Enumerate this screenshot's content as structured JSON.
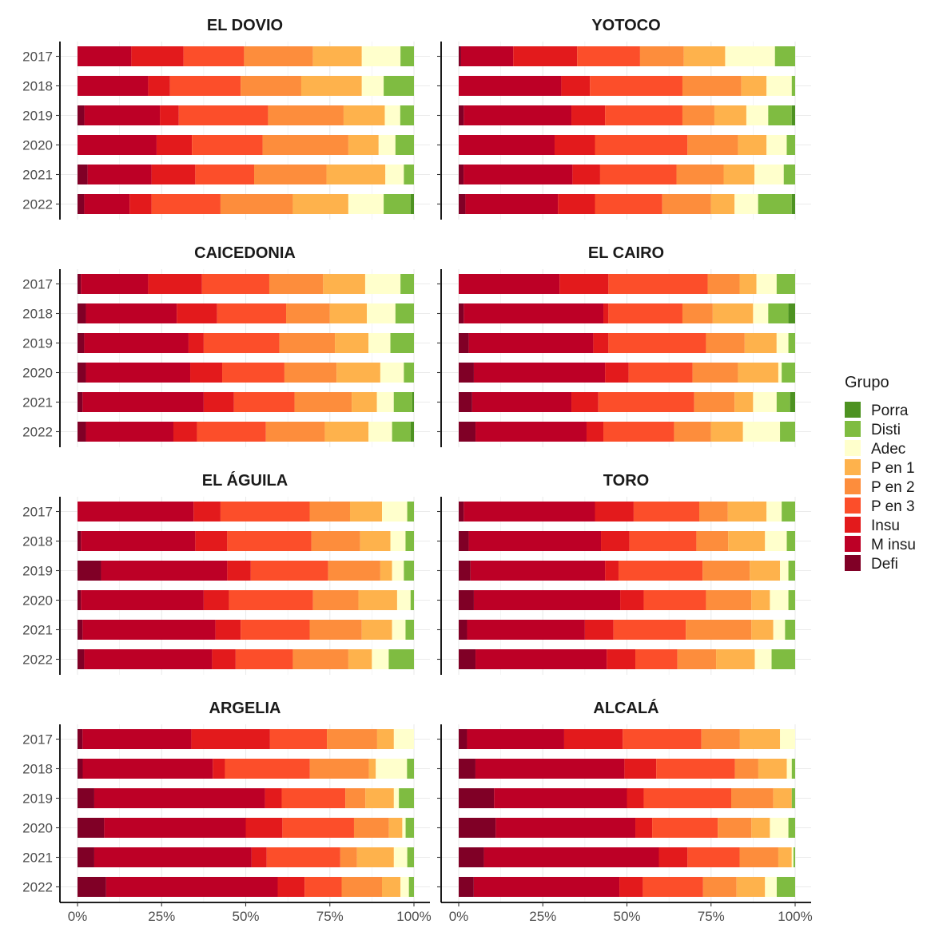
{
  "chart_data": {
    "type": "bar",
    "orientation": "horizontal",
    "stacked": "percent",
    "legend": {
      "title": "Grupo",
      "position": "right",
      "entries": [
        "Porra",
        "Disti",
        "Adec",
        "P en 1",
        "P en 2",
        "P en 3",
        "Insu",
        "M insu",
        "Defi"
      ]
    },
    "colors": {
      "Defi": "#800026",
      "M insu": "#BD0026",
      "Insu": "#E31A1C",
      "P en 3": "#FC4E2A",
      "P en 2": "#FD8D3C",
      "P en 1": "#FEB24C",
      "Adec": "#FFFFCC",
      "Disti": "#7FBC41",
      "Porra": "#4D9221"
    },
    "stack_order": [
      "Defi",
      "M insu",
      "Insu",
      "P en 3",
      "P en 2",
      "P en 1",
      "Adec",
      "Disti",
      "Porra"
    ],
    "years": [
      "2017",
      "2018",
      "2019",
      "2020",
      "2021",
      "2022"
    ],
    "x_ticks": [
      "0%",
      "25%",
      "50%",
      "75%",
      "100%"
    ],
    "grid": true,
    "panels": [
      {
        "title": "EL DOVIO",
        "rows": [
          [
            0,
            16,
            15.5,
            18,
            20.5,
            14.5,
            11.5,
            4,
            0
          ],
          [
            0,
            21,
            6.5,
            21,
            18,
            18,
            6.5,
            9,
            0
          ],
          [
            2,
            22,
            5.5,
            26,
            22,
            12,
            4.5,
            4,
            0
          ],
          [
            0,
            23.5,
            10.5,
            21,
            25.5,
            9,
            5,
            5.5,
            0
          ],
          [
            3,
            19,
            13,
            17.5,
            21.5,
            17.5,
            5.5,
            3,
            0
          ],
          [
            2,
            13.5,
            6.5,
            20.5,
            21.5,
            16.5,
            10.5,
            8,
            1
          ]
        ]
      },
      {
        "title": "YOTOCO",
        "rows": [
          [
            0.7,
            15.5,
            19,
            18.7,
            13,
            12.3,
            14.8,
            6,
            0
          ],
          [
            0,
            30.5,
            8.5,
            27.5,
            17.5,
            7.5,
            7.5,
            1,
            0
          ],
          [
            1.5,
            32,
            10,
            23,
            9.5,
            9.5,
            6.5,
            7,
            1
          ],
          [
            0,
            28.5,
            12,
            27.5,
            15,
            8.5,
            6,
            2.5,
            0
          ],
          [
            1.5,
            33.5,
            8.5,
            23.5,
            14.5,
            9.5,
            9,
            3.5,
            0
          ],
          [
            2,
            27.5,
            11,
            20,
            14.5,
            7,
            7,
            10,
            1
          ]
        ]
      },
      {
        "title": "CAICEDONIA",
        "rows": [
          [
            1,
            20,
            16,
            20,
            16,
            12.5,
            10.5,
            4,
            0
          ],
          [
            2.5,
            27,
            12,
            20.5,
            13,
            11,
            8.5,
            5.5,
            0
          ],
          [
            2,
            31,
            4.5,
            22.5,
            16.5,
            10,
            6.5,
            7,
            0
          ],
          [
            2.5,
            31,
            9.5,
            18.5,
            15.5,
            13,
            7,
            3,
            0
          ],
          [
            1.5,
            36,
            9,
            18,
            17,
            7.5,
            5,
            5.5,
            0.5
          ],
          [
            2.5,
            26,
            7,
            20.5,
            17.5,
            13,
            7,
            5.5,
            1
          ]
        ]
      },
      {
        "title": "EL CAIRO",
        "rows": [
          [
            0,
            30,
            14.5,
            29.5,
            9.5,
            5,
            6,
            5.5,
            0
          ],
          [
            1.5,
            41.5,
            1.5,
            22,
            9,
            12,
            4.5,
            6,
            2
          ],
          [
            3,
            37,
            4.5,
            29,
            11.5,
            9.5,
            3.5,
            2,
            0
          ],
          [
            4.5,
            39,
            7,
            19,
            13.5,
            12,
            1,
            4,
            0
          ],
          [
            4,
            29.5,
            8,
            28.5,
            12,
            5.5,
            7,
            4,
            1.5
          ],
          [
            5,
            33,
            5,
            21,
            11,
            9.5,
            11,
            4.5,
            0
          ]
        ]
      },
      {
        "title": "EL ÁGUILA",
        "rows": [
          [
            0,
            34.5,
            8,
            26.5,
            12,
            9.5,
            7.5,
            2,
            0
          ],
          [
            1,
            34,
            9.5,
            25,
            14.5,
            9,
            4.5,
            2.5,
            0
          ],
          [
            7,
            37.5,
            7,
            23,
            15.5,
            3.5,
            3.5,
            3,
            0
          ],
          [
            1,
            36.5,
            7.5,
            25,
            13.5,
            11.5,
            4,
            1,
            0
          ],
          [
            1.5,
            39.5,
            7.5,
            20.5,
            15.5,
            9,
            4,
            2.5,
            0
          ],
          [
            2,
            38,
            7,
            17,
            16.5,
            7,
            5,
            7.5,
            0
          ]
        ]
      },
      {
        "title": "TORO",
        "rows": [
          [
            1.5,
            39,
            11.5,
            19.5,
            8.5,
            11.5,
            4.5,
            4,
            0
          ],
          [
            3,
            39.5,
            8.5,
            20,
            9.5,
            11,
            6.5,
            2.5,
            0
          ],
          [
            3.5,
            40,
            4,
            25,
            14,
            9,
            2.5,
            2,
            0
          ],
          [
            4.5,
            43.5,
            7,
            18.5,
            13.5,
            5.5,
            5.5,
            2,
            0
          ],
          [
            2.5,
            35,
            8.5,
            21.5,
            19.5,
            6.5,
            3.5,
            3,
            0
          ],
          [
            5,
            39,
            8.5,
            12.5,
            11.5,
            11.5,
            5,
            7,
            0
          ]
        ]
      },
      {
        "title": "ARGELIA",
        "rows": [
          [
            1.5,
            32.5,
            23.5,
            17,
            15,
            5,
            6,
            0,
            0
          ],
          [
            1.5,
            37.5,
            3.5,
            24.5,
            17,
            2,
            9,
            2,
            0
          ],
          [
            5,
            51,
            5,
            19,
            6,
            8.5,
            1.5,
            4.5,
            0
          ],
          [
            8,
            42.5,
            11,
            21.5,
            10.5,
            4,
            1,
            2.5,
            0
          ],
          [
            5,
            47,
            4.5,
            22,
            5,
            11,
            4,
            2,
            0
          ],
          [
            8.5,
            51,
            8,
            11,
            12,
            5.5,
            2.5,
            1.5,
            0
          ]
        ]
      },
      {
        "title": "ALCALÁ",
        "rows": [
          [
            2.5,
            29,
            17.5,
            23.5,
            11.5,
            12,
            4.5,
            0,
            0
          ],
          [
            5,
            44.5,
            9.5,
            23.5,
            7,
            8.5,
            1.5,
            1,
            0
          ],
          [
            10.5,
            39.5,
            5,
            26,
            12.5,
            5.5,
            0,
            1,
            0
          ],
          [
            11,
            41.5,
            5,
            19.5,
            10,
            5.5,
            5.5,
            2,
            0
          ],
          [
            7.5,
            52,
            8.5,
            15.5,
            11.5,
            4,
            0.5,
            0.5,
            0
          ],
          [
            4.5,
            43.5,
            7,
            18,
            10,
            8.5,
            3.5,
            5.5,
            0
          ]
        ]
      }
    ]
  }
}
